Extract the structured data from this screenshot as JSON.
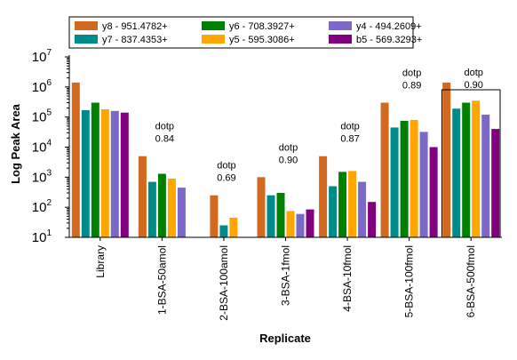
{
  "chart_data": {
    "type": "bar",
    "xlabel": "Replicate",
    "ylabel": "Log Peak Area",
    "yscale": "log",
    "ylim": [
      10,
      10000000
    ],
    "y_ticks": [
      {
        "value": 10,
        "base": "10",
        "exp": "1"
      },
      {
        "value": 100,
        "base": "10",
        "exp": "2"
      },
      {
        "value": 1000,
        "base": "10",
        "exp": "3"
      },
      {
        "value": 10000,
        "base": "10",
        "exp": "4"
      },
      {
        "value": 100000,
        "base": "10",
        "exp": "5"
      },
      {
        "value": 1000000,
        "base": "10",
        "exp": "6"
      },
      {
        "value": 10000000,
        "base": "10",
        "exp": "7"
      }
    ],
    "categories": [
      "Library",
      "1-BSA-50amol",
      "2-BSA-100amol",
      "3-BSA-1fmol",
      "4-BSA-10fmol",
      "5-BSA-100fmol",
      "6-BSA-500fmol"
    ],
    "legend_position": "top",
    "grid": false,
    "series": [
      {
        "name": "y8 - 951.4782+",
        "color": "#D2691E",
        "values": [
          1400000,
          5000,
          250,
          1000,
          5000,
          300000,
          1400000
        ]
      },
      {
        "name": "y7 - 837.4353+",
        "color": "#008B8B",
        "values": [
          170000,
          700,
          25,
          250,
          500,
          45000,
          190000
        ]
      },
      {
        "name": "y6 - 708.3927+",
        "color": "#008000",
        "values": [
          300000,
          1300,
          null,
          300,
          1500,
          75000,
          300000
        ]
      },
      {
        "name": "y5 - 595.3086+",
        "color": "#FFA500",
        "values": [
          180000,
          900,
          45,
          75,
          1600,
          80000,
          350000
        ]
      },
      {
        "name": "y4 - 494.2609+",
        "color": "#7B68C8",
        "values": [
          160000,
          450,
          null,
          60,
          700,
          32000,
          120000
        ]
      },
      {
        "name": "b5 - 569.3293+",
        "color": "#800080",
        "values": [
          140000,
          null,
          null,
          85,
          150,
          10000,
          40000
        ]
      }
    ],
    "annotations": [
      {
        "category": "1-BSA-50amol",
        "label": "dotp",
        "value": "0.84"
      },
      {
        "category": "2-BSA-100amol",
        "label": "dotp",
        "value": "0.69"
      },
      {
        "category": "3-BSA-1fmol",
        "label": "dotp",
        "value": "0.90"
      },
      {
        "category": "4-BSA-10fmol",
        "label": "dotp",
        "value": "0.87"
      },
      {
        "category": "5-BSA-100fmol",
        "label": "dotp",
        "value": "0.89"
      },
      {
        "category": "6-BSA-500fmol",
        "label": "dotp",
        "value": "0.90"
      }
    ],
    "selected_category": "6-BSA-500fmol"
  }
}
